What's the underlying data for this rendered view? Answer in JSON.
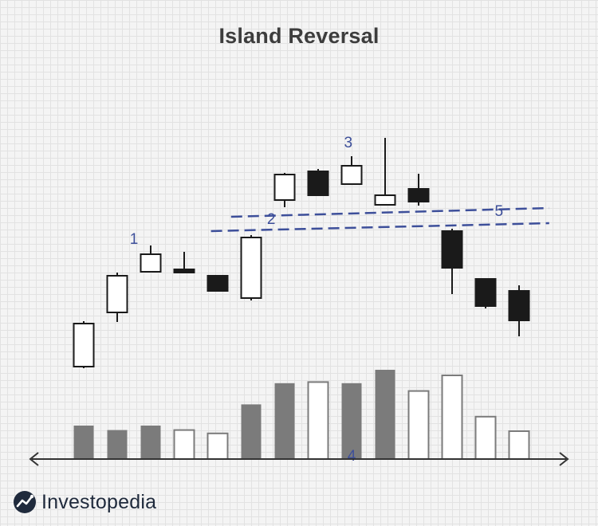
{
  "title": "Island Reversal",
  "brand": {
    "name": "Investopedia",
    "logo_icon": "investopedia-logo-icon"
  },
  "colors": {
    "bullish_fill": "#ffffff",
    "bearish_fill": "#1a1a1a",
    "candle_stroke": "#1a1a1a",
    "volume_up": "#7b7b7b",
    "volume_down": "#ffffff",
    "volume_stroke": "#7b7b7b",
    "trendline": "#3d4f9a",
    "annotation": "#3d4f9a",
    "axis": "#333333"
  },
  "chart_data": {
    "type": "candlestick",
    "title": "Island Reversal",
    "xlabel": "",
    "ylabel": "",
    "candles": [
      {
        "open": 20.0,
        "close": 47.0,
        "high": 48.5,
        "low": 19.0
      },
      {
        "open": 54.0,
        "close": 77.0,
        "high": 79.0,
        "low": 48.0
      },
      {
        "open": 79.5,
        "close": 90.5,
        "high": 96.0,
        "low": 79.5
      },
      {
        "open": 81.0,
        "close": 79.0,
        "high": 92.0,
        "low": 79.0
      },
      {
        "open": 77.0,
        "close": 67.5,
        "high": 77.0,
        "low": 67.5
      },
      {
        "open": 63.0,
        "close": 101.0,
        "high": 102.5,
        "low": 61.5
      },
      {
        "open": 124.5,
        "close": 140.5,
        "high": 141.5,
        "low": 120.0
      },
      {
        "open": 142.5,
        "close": 127.5,
        "high": 144.0,
        "low": 127.5
      },
      {
        "open": 134.5,
        "close": 146.0,
        "high": 152.0,
        "low": 134.5
      },
      {
        "open": 121.5,
        "close": 127.5,
        "high": 163.5,
        "low": 121.5
      },
      {
        "open": 131.5,
        "close": 123.5,
        "high": 141.0,
        "low": 121.0
      },
      {
        "open": 105.0,
        "close": 82.0,
        "high": 106.5,
        "low": 65.5
      },
      {
        "open": 75.0,
        "close": 58.0,
        "high": 75.0,
        "low": 56.5
      },
      {
        "open": 67.5,
        "close": 49.0,
        "high": 71.0,
        "low": 39.0
      }
    ],
    "volume": [
      {
        "value": 30,
        "up": true
      },
      {
        "value": 26,
        "up": true
      },
      {
        "value": 30,
        "up": true
      },
      {
        "value": 26,
        "up": false
      },
      {
        "value": 23,
        "up": false
      },
      {
        "value": 49,
        "up": true
      },
      {
        "value": 68,
        "up": true
      },
      {
        "value": 69,
        "up": false
      },
      {
        "value": 68,
        "up": true
      },
      {
        "value": 80,
        "up": true
      },
      {
        "value": 61,
        "up": false
      },
      {
        "value": 75,
        "up": false
      },
      {
        "value": 38,
        "up": false
      },
      {
        "value": 25,
        "up": false
      }
    ],
    "trendlines": [
      {
        "x0": 4.4,
        "y0": 114.0,
        "x1": 13.9,
        "y1": 119.5
      },
      {
        "x0": 3.8,
        "y0": 105.0,
        "x1": 13.9,
        "y1": 110.0
      }
    ],
    "annotations": [
      {
        "text": "1",
        "x": 1.5,
        "y": 97.0
      },
      {
        "text": "2",
        "x": 5.6,
        "y": 109.5
      },
      {
        "text": "3",
        "x": 7.9,
        "y": 157.5
      },
      {
        "text": "4",
        "x": 8.0,
        "y": -39.0
      },
      {
        "text": "5",
        "x": 12.4,
        "y": 114.5
      }
    ],
    "grid": true,
    "legend": "none"
  }
}
